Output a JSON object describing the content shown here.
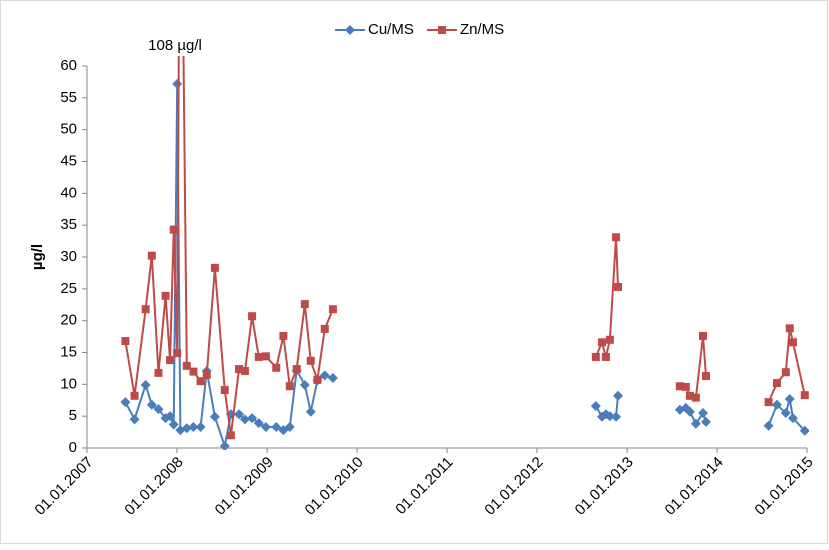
{
  "chart_data": {
    "type": "line",
    "annotation": "108 µg/l",
    "y_label": "µg/l",
    "legend": "top",
    "x": [
      "06.06.2007",
      "13.07.2007",
      "27.08.2007",
      "21.09.2007",
      "18.10.2007",
      "16.11.2007",
      "04.12.2007",
      "19.12.2007",
      "02.01.2008",
      "15.01.2008",
      "10.02.2008",
      "08.03.2008",
      "06.04.2008",
      "01.05.2008",
      "03.06.2008",
      "13.07.2008",
      "07.08.2008",
      "09.09.2008",
      "03.10.2008",
      "01.11.2008",
      "28.11.2008",
      "27.12.2008",
      "07.02.2009",
      "08.03.2009",
      "03.04.2009",
      "01.05.2009",
      "03.06.2009",
      "27.06.2009",
      "24.07.2009",
      "23.08.2009",
      "25.09.2009",
      "01.01.2011",
      "27.08.2012",
      "21.09.2012",
      "07.10.2012",
      "23.10.2012",
      "17.11.2012",
      "25.11.2012",
      "01.07.2013",
      "03.08.2013",
      "27.08.2013",
      "13.09.2013",
      "07.10.2013",
      "05.11.2013",
      "17.11.2013",
      "01.04.2014",
      "29.07.2014",
      "01.09.2014",
      "07.10.2014",
      "23.10.2014",
      "05.11.2014",
      "23.12.2014"
    ],
    "series": [
      {
        "name": "Cu/MS",
        "color": "#4a7ebb",
        "marker": "diamond",
        "values": [
          7.2,
          4.5,
          9.9,
          6.8,
          6.1,
          4.7,
          5.0,
          3.7,
          57.2,
          2.8,
          3.1,
          3.3,
          3.3,
          12.1,
          4.9,
          0.3,
          5.3,
          5.3,
          4.5,
          4.7,
          3.9,
          3.3,
          3.3,
          2.8,
          3.3,
          12.2,
          9.9,
          5.7,
          10.6,
          11.4,
          11.0,
          null,
          6.6,
          4.9,
          5.3,
          5.0,
          4.9,
          8.2,
          null,
          6.0,
          6.3,
          5.7,
          3.8,
          5.5,
          4.1,
          null,
          3.5,
          6.8,
          5.5,
          7.7,
          4.7,
          2.7
        ]
      },
      {
        "name": "Zn/MS",
        "color": "#be4b48",
        "marker": "square",
        "values": [
          16.8,
          8.2,
          21.8,
          30.2,
          11.8,
          23.9,
          13.8,
          34.3,
          14.9,
          108,
          12.9,
          12.0,
          10.5,
          11.5,
          28.3,
          9.1,
          2.0,
          12.4,
          12.1,
          20.7,
          14.3,
          14.4,
          12.6,
          17.6,
          9.7,
          12.4,
          22.6,
          13.7,
          10.7,
          18.7,
          21.8,
          null,
          14.3,
          16.6,
          14.3,
          17.0,
          33.1,
          25.3,
          null,
          9.7,
          9.6,
          8.2,
          7.9,
          17.6,
          11.3,
          null,
          7.2,
          10.2,
          11.9,
          18.8,
          16.6,
          8.3
        ]
      }
    ],
    "xlim": [
      "01.01.2007",
      "01.01.2015"
    ],
    "xticks": [
      "01.01.2007",
      "01.01.2008",
      "01.01.2009",
      "01.01.2010",
      "01.01.2011",
      "01.01.2012",
      "01.01.2013",
      "01.01.2014",
      "01.01.2015"
    ],
    "ylim": [
      0,
      60
    ],
    "yticks": [
      0,
      5,
      10,
      15,
      20,
      25,
      30,
      35,
      40,
      45,
      50,
      55,
      60
    ]
  }
}
